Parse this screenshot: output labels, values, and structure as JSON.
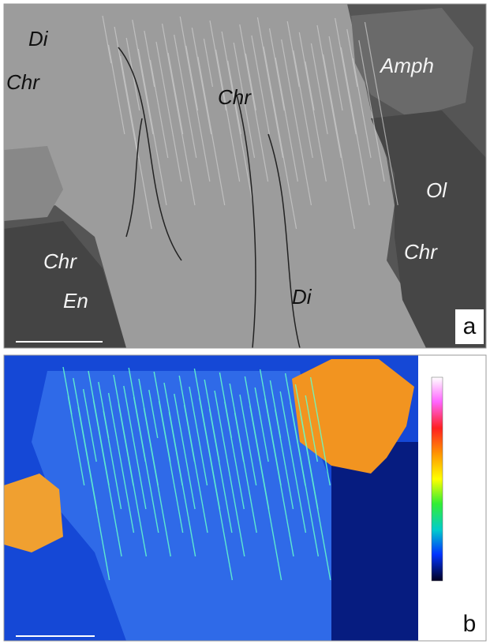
{
  "panels": [
    {
      "letter": "a",
      "labels": [
        "Di",
        "Chr",
        "Chr",
        "Amph",
        "Ol",
        "Chr",
        "Chr",
        "En",
        "Di"
      ]
    },
    {
      "letter": "b"
    }
  ]
}
